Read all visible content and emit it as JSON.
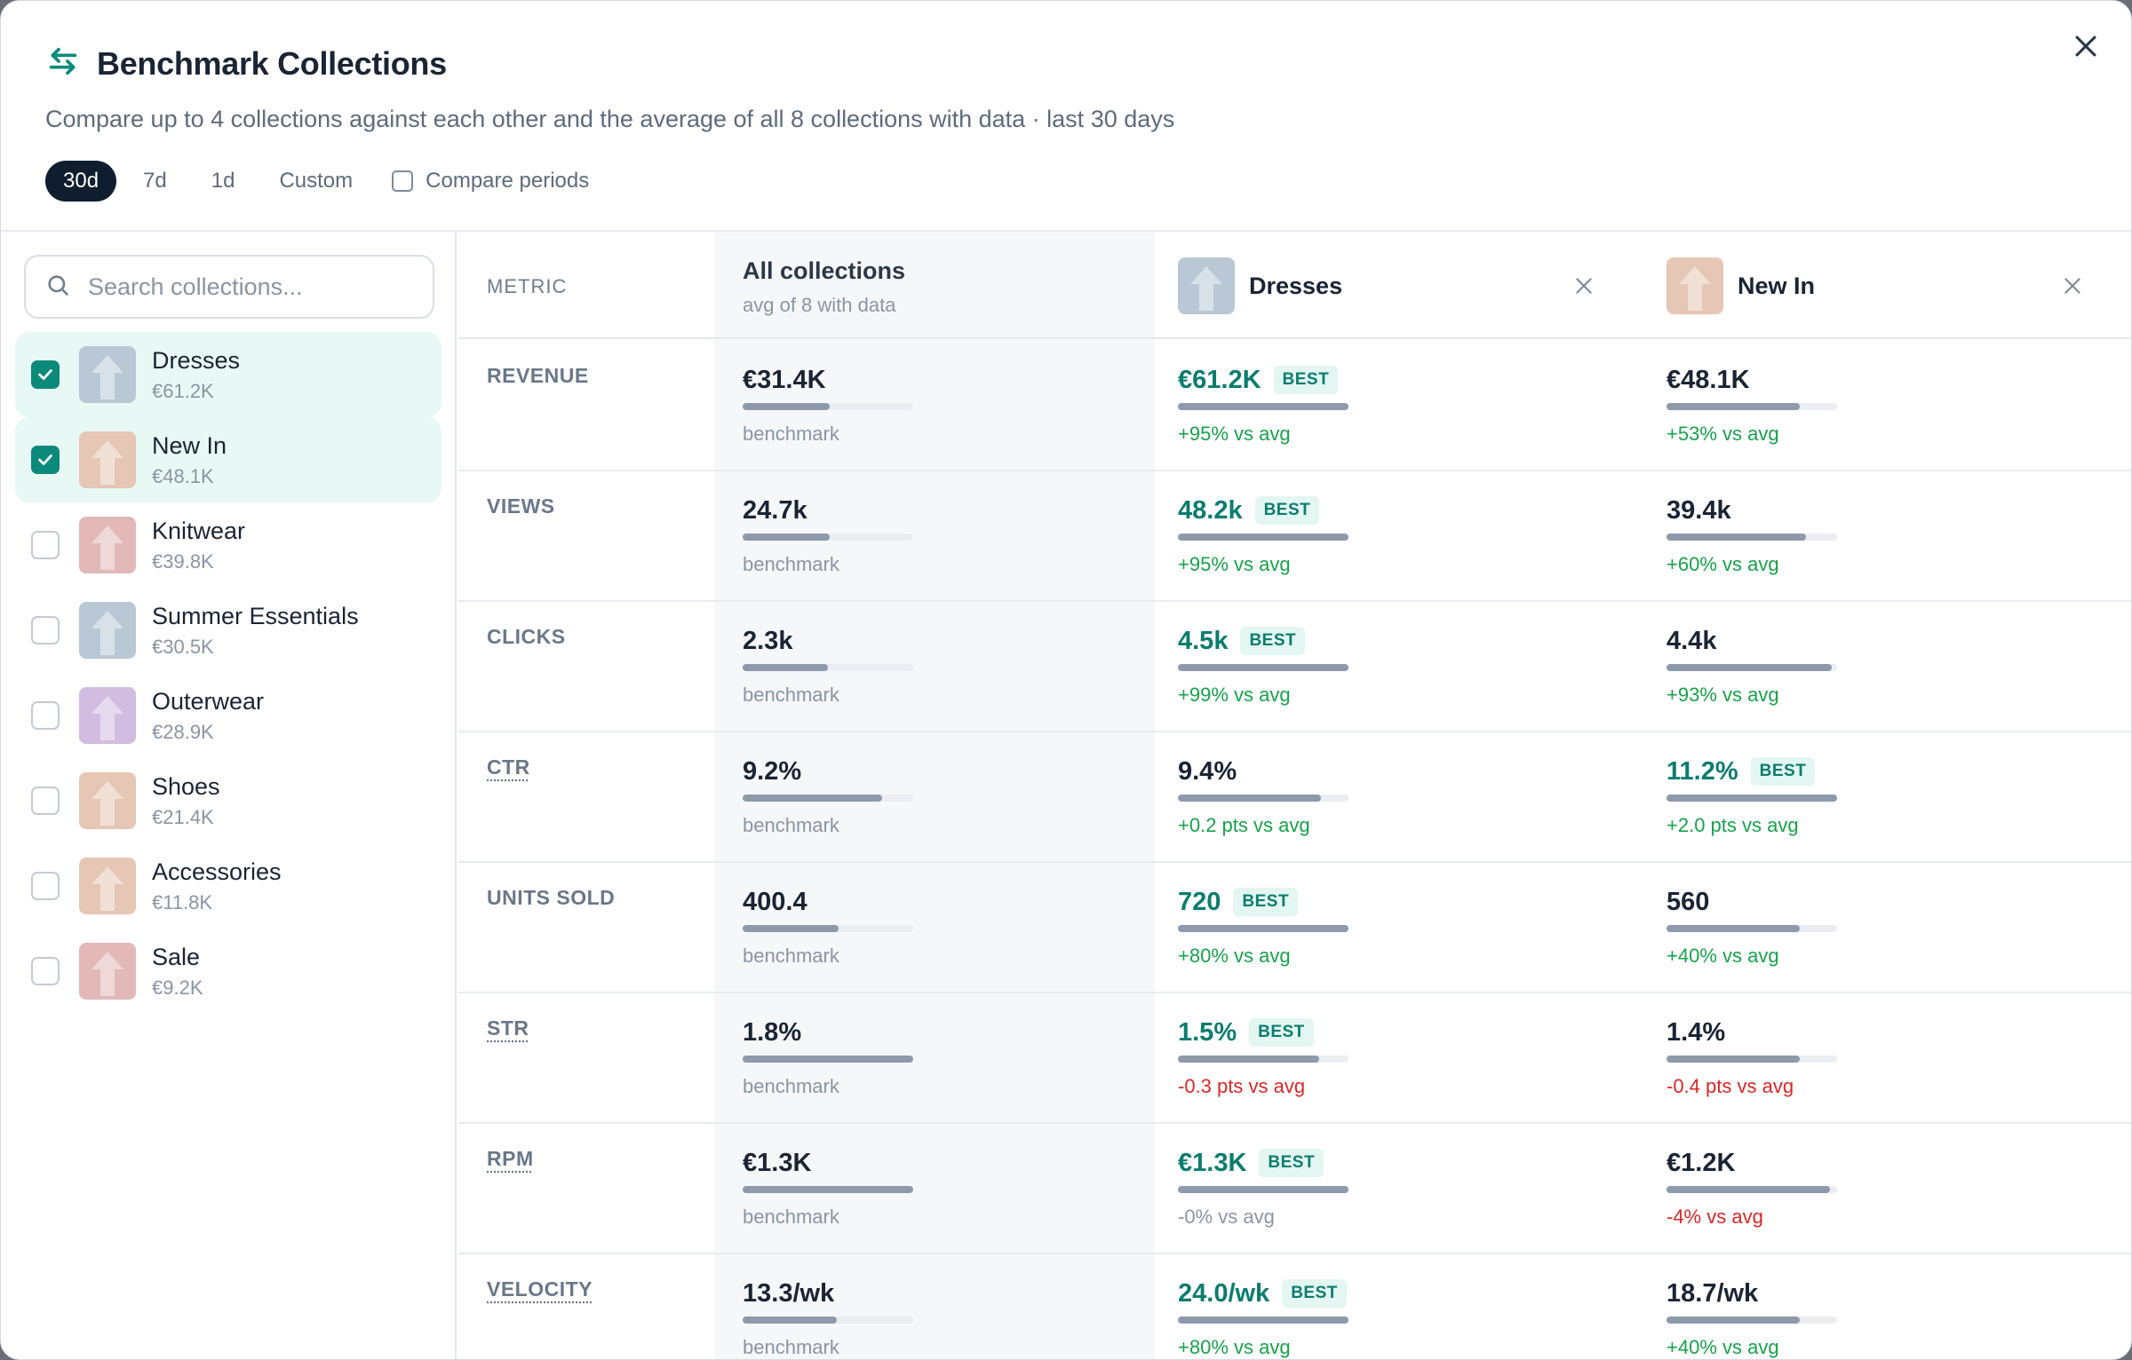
{
  "modal": {
    "title": "Benchmark Collections",
    "subtitle": "Compare up to 4 collections against each other and the average of all 8 collections with data · last 30 days",
    "periods": [
      "30d",
      "7d",
      "1d",
      "Custom"
    ],
    "active_period": "30d",
    "compare_periods_label": "Compare periods",
    "compare_periods_checked": false
  },
  "sidebar": {
    "search_placeholder": "Search collections...",
    "collections": [
      {
        "name": "Dresses",
        "value": "€61.2K",
        "checked": true,
        "thumb_color": "#b9c8d4"
      },
      {
        "name": "New In",
        "value": "€48.1K",
        "checked": true,
        "thumb_color": "#e6c6b4"
      },
      {
        "name": "Knitwear",
        "value": "€39.8K",
        "checked": false,
        "thumb_color": "#e2b8b8"
      },
      {
        "name": "Summer Essentials",
        "value": "€30.5K",
        "checked": false,
        "thumb_color": "#b9c8d4"
      },
      {
        "name": "Outerwear",
        "value": "€28.9K",
        "checked": false,
        "thumb_color": "#d1bde0"
      },
      {
        "name": "Shoes",
        "value": "€21.4K",
        "checked": false,
        "thumb_color": "#e6c6b4"
      },
      {
        "name": "Accessories",
        "value": "€11.8K",
        "checked": false,
        "thumb_color": "#e6c6b4"
      },
      {
        "name": "Sale",
        "value": "€9.2K",
        "checked": false,
        "thumb_color": "#e2b8b8"
      }
    ]
  },
  "table": {
    "metric_header": "METRIC",
    "avg_header": {
      "title": "All collections",
      "subtitle": "avg of 8 with data"
    },
    "columns": [
      {
        "name": "Dresses",
        "thumb_color": "#b9c8d4"
      },
      {
        "name": "New In",
        "thumb_color": "#e6c6b4"
      }
    ],
    "best_label": "BEST",
    "benchmark_label": "benchmark",
    "rows": [
      {
        "metric": "REVENUE",
        "dotted": false,
        "avg": {
          "value": "€31.4K",
          "bar": 0.51
        },
        "cells": [
          {
            "value": "€61.2K",
            "best": true,
            "bar": 1.0,
            "note": "+95% vs avg",
            "tone": "pos"
          },
          {
            "value": "€48.1K",
            "best": false,
            "bar": 0.78,
            "note": "+53% vs avg",
            "tone": "pos"
          }
        ]
      },
      {
        "metric": "VIEWS",
        "dotted": false,
        "avg": {
          "value": "24.7k",
          "bar": 0.51
        },
        "cells": [
          {
            "value": "48.2k",
            "best": true,
            "bar": 1.0,
            "note": "+95% vs avg",
            "tone": "pos"
          },
          {
            "value": "39.4k",
            "best": false,
            "bar": 0.82,
            "note": "+60% vs avg",
            "tone": "pos"
          }
        ]
      },
      {
        "metric": "CLICKS",
        "dotted": false,
        "avg": {
          "value": "2.3k",
          "bar": 0.5
        },
        "cells": [
          {
            "value": "4.5k",
            "best": true,
            "bar": 1.0,
            "note": "+99% vs avg",
            "tone": "pos"
          },
          {
            "value": "4.4k",
            "best": false,
            "bar": 0.97,
            "note": "+93% vs avg",
            "tone": "pos"
          }
        ]
      },
      {
        "metric": "CTR",
        "dotted": true,
        "avg": {
          "value": "9.2%",
          "bar": 0.82
        },
        "cells": [
          {
            "value": "9.4%",
            "best": false,
            "bar": 0.84,
            "note": "+0.2 pts vs avg",
            "tone": "pos"
          },
          {
            "value": "11.2%",
            "best": true,
            "bar": 1.0,
            "note": "+2.0 pts vs avg",
            "tone": "pos"
          }
        ]
      },
      {
        "metric": "UNITS SOLD",
        "dotted": false,
        "avg": {
          "value": "400.4",
          "bar": 0.56
        },
        "cells": [
          {
            "value": "720",
            "best": true,
            "bar": 1.0,
            "note": "+80% vs avg",
            "tone": "pos"
          },
          {
            "value": "560",
            "best": false,
            "bar": 0.78,
            "note": "+40% vs avg",
            "tone": "pos"
          }
        ]
      },
      {
        "metric": "STR",
        "dotted": true,
        "avg": {
          "value": "1.8%",
          "bar": 1.0
        },
        "cells": [
          {
            "value": "1.5%",
            "best": true,
            "bar": 0.83,
            "note": "-0.3 pts vs avg",
            "tone": "neg"
          },
          {
            "value": "1.4%",
            "best": false,
            "bar": 0.78,
            "note": "-0.4 pts vs avg",
            "tone": "neg"
          }
        ]
      },
      {
        "metric": "RPM",
        "dotted": true,
        "avg": {
          "value": "€1.3K",
          "bar": 1.0
        },
        "cells": [
          {
            "value": "€1.3K",
            "best": true,
            "bar": 1.0,
            "note": "-0% vs avg",
            "tone": "neutral"
          },
          {
            "value": "€1.2K",
            "best": false,
            "bar": 0.96,
            "note": "-4% vs avg",
            "tone": "neg"
          }
        ]
      },
      {
        "metric": "VELOCITY",
        "dotted": true,
        "avg": {
          "value": "13.3/wk",
          "bar": 0.55
        },
        "cells": [
          {
            "value": "24.0/wk",
            "best": true,
            "bar": 1.0,
            "note": "+80% vs avg",
            "tone": "pos"
          },
          {
            "value": "18.7/wk",
            "best": false,
            "bar": 0.78,
            "note": "+40% vs avg",
            "tone": "pos"
          }
        ]
      }
    ]
  }
}
